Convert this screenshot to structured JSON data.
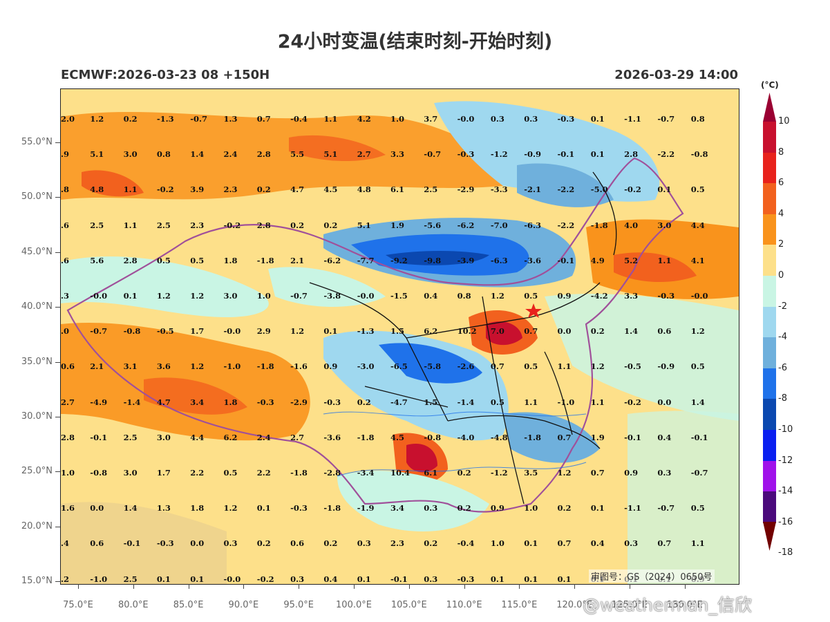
{
  "title": "24小时变温(结束时刻-开始时刻)",
  "model_run": "ECMWF:2026-03-23 08 +150H",
  "valid_time": "2026-03-29 14:00",
  "colorbar": {
    "unit": "(°C)",
    "labels": [
      "10",
      "8",
      "6",
      "4",
      "2",
      "0",
      "-2",
      "-4",
      "-6",
      "-8",
      "-10",
      "-12",
      "-14",
      "-16",
      "-18"
    ],
    "colors": [
      "#9a0032",
      "#c8102e",
      "#e8221c",
      "#f2611e",
      "#f9931c",
      "#fde08a",
      "#c9f5e4",
      "#9fd8ef",
      "#6fb0dc",
      "#1f72ea",
      "#0b48b0",
      "#0a1ff0",
      "#a012ea",
      "#4b0a7c",
      "#720000"
    ]
  },
  "lat_labels": [
    "55.0°N",
    "50.0°N",
    "45.0°N",
    "40.0°N",
    "35.0°N",
    "30.0°N",
    "25.0°N",
    "20.0°N",
    "15.0°N"
  ],
  "lon_labels": [
    "75.0°E",
    "80.0°E",
    "85.0°E",
    "90.0°E",
    "95.0°E",
    "100.0°E",
    "105.0°E",
    "110.0°E",
    "115.0°E",
    "120.0°E",
    "125.0°E",
    "130.0°E"
  ],
  "grid_values": [
    [
      "2.0",
      "1.2",
      "0.2",
      "-1.3",
      "-0.7",
      "1.3",
      "0.7",
      "-0.4",
      "1.1",
      "4.2",
      "1.0",
      "3.7",
      "-0.0",
      "0.3",
      "0.3",
      "-0.3",
      "0.1",
      "-1.1",
      "-0.7",
      "0.8"
    ],
    [
      ".9",
      "5.1",
      "3.0",
      "0.8",
      "1.4",
      "2.4",
      "2.8",
      "5.5",
      "5.1",
      "2.7",
      "3.3",
      "-0.7",
      "-0.3",
      "-1.2",
      "-0.9",
      "-0.1",
      "0.1",
      "2.8",
      "-2.2",
      "-0.8"
    ],
    [
      ".8",
      "4.8",
      "1.1",
      "-0.2",
      "3.9",
      "2.3",
      "0.2",
      "4.7",
      "4.5",
      "4.8",
      "6.1",
      "2.5",
      "-2.9",
      "-3.3",
      "-2.1",
      "-2.2",
      "-5.0",
      "-0.2",
      "0.1",
      "0.5"
    ],
    [
      ".6",
      "2.5",
      "1.1",
      "2.5",
      "2.3",
      "-0.2",
      "2.8",
      "0.2",
      "0.2",
      "5.1",
      "1.9",
      "-5.6",
      "-6.2",
      "-7.0",
      "-6.3",
      "-2.2",
      "-1.8",
      "4.0",
      "3.0",
      "4.4"
    ],
    [
      ".6",
      "5.6",
      "2.8",
      "0.5",
      "0.5",
      "1.8",
      "-1.8",
      "2.1",
      "-6.2",
      "-7.7",
      "-9.2",
      "-9.8",
      "-3.9",
      "-6.3",
      "-3.6",
      "-0.1",
      "4.9",
      "5.2",
      "1.1",
      "4.1"
    ],
    [
      ".3",
      "-0.0",
      "0.1",
      "1.2",
      "1.2",
      "3.0",
      "1.0",
      "-0.7",
      "-3.8",
      "-0.0",
      "-1.5",
      "0.4",
      "0.8",
      "1.2",
      "0.5",
      "0.9",
      "-4.2",
      "3.3",
      "-0.3",
      "-0.0"
    ],
    [
      ".0",
      "-0.7",
      "-0.8",
      "-0.5",
      "1.7",
      "-0.0",
      "2.9",
      "1.2",
      "0.1",
      "-1.3",
      "1.5",
      "6.2",
      "10.2",
      "7.0",
      "0.7",
      "0.0",
      "0.2",
      "1.4",
      "0.6",
      "1.2"
    ],
    [
      "0.6",
      "2.1",
      "3.1",
      "3.6",
      "1.2",
      "-1.0",
      "-1.8",
      "-1.6",
      "0.9",
      "-3.0",
      "-6.5",
      "-5.8",
      "-2.6",
      "0.7",
      "0.5",
      "1.1",
      "1.2",
      "-0.5",
      "-0.9",
      "0.5"
    ],
    [
      "2.7",
      "-4.9",
      "-1.4",
      "4.7",
      "3.4",
      "1.8",
      "-0.3",
      "-2.9",
      "-0.3",
      "0.2",
      "-4.7",
      "1.5",
      "-1.4",
      "0.5",
      "1.1",
      "-1.0",
      "1.1",
      "-0.2",
      "0.0",
      "1.4"
    ],
    [
      "2.8",
      "-0.1",
      "2.5",
      "3.0",
      "4.4",
      "6.2",
      "2.4",
      "2.7",
      "-3.6",
      "-1.8",
      "4.5",
      "-0.8",
      "-4.0",
      "-4.8",
      "-1.8",
      "0.7",
      "1.9",
      "-0.1",
      "0.4",
      "-0.1"
    ],
    [
      "1.0",
      "-0.8",
      "3.0",
      "1.7",
      "2.2",
      "0.5",
      "2.2",
      "-1.8",
      "-2.8",
      "-3.4",
      "10.4",
      "6.1",
      "0.2",
      "-1.2",
      "3.5",
      "1.2",
      "0.7",
      "0.9",
      "0.3",
      "-0.7"
    ],
    [
      "1.6",
      "0.0",
      "1.4",
      "1.3",
      "1.8",
      "1.2",
      "0.1",
      "-0.3",
      "-1.8",
      "-1.9",
      "3.4",
      "0.3",
      "0.2",
      "0.9",
      "1.0",
      "0.2",
      "0.1",
      "-1.1",
      "-0.7",
      "0.5"
    ],
    [
      ".4",
      "0.6",
      "-0.1",
      "-0.3",
      "0.0",
      "0.3",
      "0.2",
      "0.6",
      "0.2",
      "0.3",
      "2.3",
      "0.2",
      "-0.4",
      "1.0",
      "0.1",
      "0.7",
      "0.4",
      "0.3",
      "0.7",
      "1.1"
    ],
    [
      ".2",
      "-1.0",
      "2.5",
      "0.1",
      "0.1",
      "-0.0",
      "-0.2",
      "0.3",
      "0.4",
      "0.1",
      "-0.1",
      "0.3",
      "-0.3",
      "0.1",
      "0.1",
      "0.1",
      "0.1",
      "0.1",
      "0.1",
      "0.9"
    ]
  ],
  "review_number": "审图号：GS（2024）0650号",
  "watermark": "@weatherman_信欣"
}
